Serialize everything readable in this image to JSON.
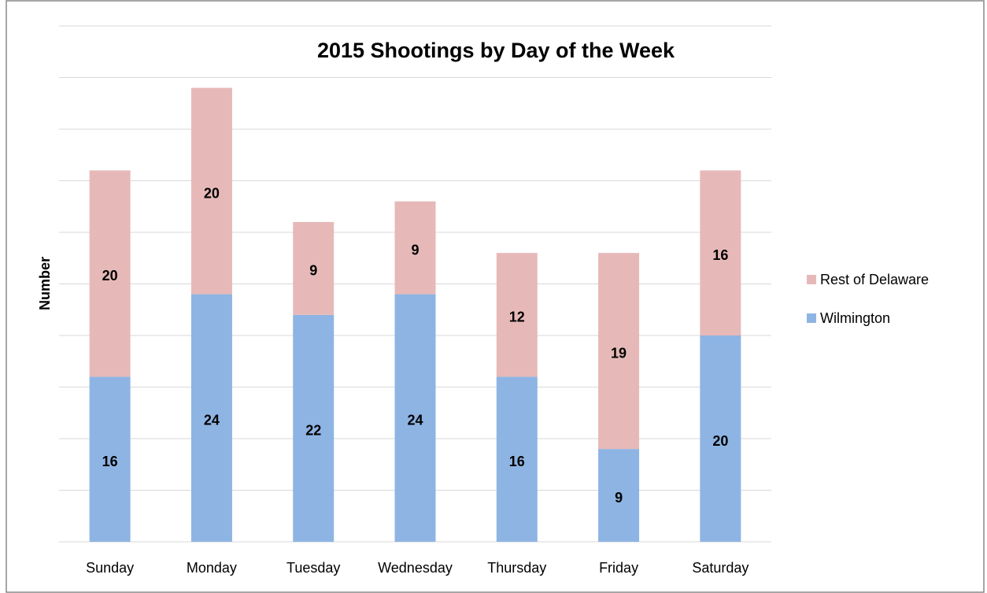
{
  "chart_data": {
    "type": "stacked_bar",
    "title": "2015 Shootings by Day of the Week",
    "y_label": "Number",
    "categories": [
      "Sunday",
      "Monday",
      "Tuesday",
      "Wednesday",
      "Thursday",
      "Friday",
      "Saturday"
    ],
    "series": [
      {
        "name": "Wilmington",
        "color": "#8eb4e3",
        "values": [
          16,
          24,
          22,
          24,
          16,
          9,
          20
        ]
      },
      {
        "name": "Rest of Delaware",
        "color": "#e6b9b8",
        "values": [
          20,
          20,
          9,
          9,
          12,
          19,
          16
        ]
      }
    ],
    "ylim": [
      0,
      50
    ],
    "yticks": [
      0,
      5,
      10,
      15,
      20,
      25,
      30,
      35,
      40,
      45,
      50
    ],
    "grid": true,
    "legend": "right"
  }
}
